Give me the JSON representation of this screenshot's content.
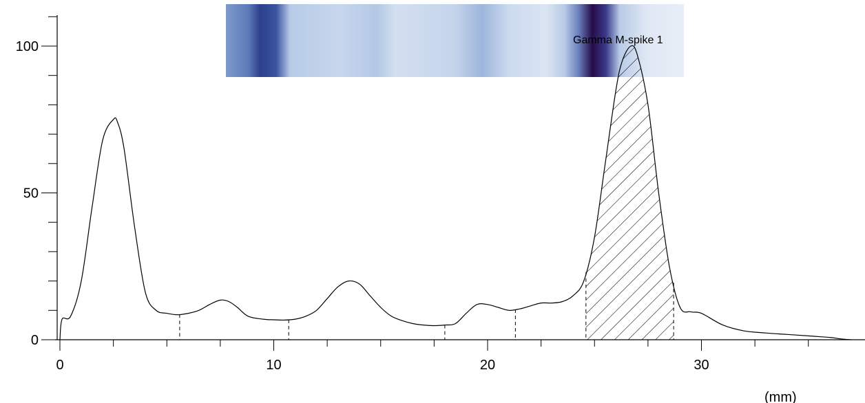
{
  "chart_data": {
    "type": "line",
    "title": "",
    "xlabel": "(mm)",
    "ylabel": "",
    "xlim": [
      0,
      37
    ],
    "ylim": [
      0,
      110
    ],
    "x_ticks": [
      0,
      10,
      20,
      30
    ],
    "x_minor_step": 2.5,
    "y_ticks": [
      0,
      50,
      100
    ],
    "y_minor_step": 10,
    "grid": false,
    "legend": "none",
    "series": [
      {
        "x": [
          0,
          0.1,
          0.5,
          1.0,
          1.5,
          2.0,
          2.5,
          2.7,
          3.0,
          3.5,
          4.0,
          4.5,
          5.0,
          5.5,
          6.0,
          6.5,
          7.0,
          7.5,
          7.9,
          8.3,
          8.8,
          9.5,
          10.0,
          10.5,
          11.0,
          11.5,
          12.0,
          12.5,
          13.0,
          13.5,
          14.0,
          14.5,
          15.0,
          15.5,
          16.0,
          16.5,
          17.0,
          17.5,
          18.0,
          18.5,
          19.0,
          19.5,
          20.0,
          20.5,
          21.0,
          21.5,
          22.0,
          22.5,
          23.0,
          23.5,
          24.0,
          24.5,
          25.0,
          25.5,
          26.0,
          26.3,
          26.7,
          27.0,
          27.5,
          28.0,
          28.5,
          29.0,
          29.5,
          30.0,
          31.0,
          32.0,
          33.0,
          34.0,
          35.0,
          36.0,
          36.5,
          37.0
        ],
        "y": [
          0,
          7,
          8,
          20,
          45,
          68,
          75,
          74,
          65,
          38,
          16,
          10,
          9,
          8.5,
          9,
          10,
          12,
          13.5,
          13,
          11,
          8,
          7,
          6.8,
          6.7,
          7,
          8,
          10,
          14,
          18,
          20,
          19,
          15,
          11,
          8,
          6.5,
          5.5,
          5,
          4.8,
          5,
          5.5,
          9,
          12,
          12,
          11,
          10,
          10.5,
          11.5,
          12.5,
          12.5,
          13,
          15,
          20,
          35,
          60,
          85,
          95,
          100,
          97,
          80,
          50,
          25,
          11,
          9.5,
          9,
          5,
          3,
          2.3,
          1.8,
          1.3,
          0.8,
          0.3,
          0
        ]
      }
    ],
    "fraction_dividers_x": [
      5.6,
      10.7,
      18.0,
      21.3,
      24.6,
      28.7
    ],
    "highlighted_region": {
      "x_start": 24.6,
      "x_end": 28.7,
      "pattern": "diagonal-hatch",
      "label": "Gamma M-spike 1"
    },
    "gel_strip_colors": [
      "#5b79b6",
      "#2c3f8c",
      "#c7d6ec",
      "#9db6dc",
      "#dbe5f2",
      "#270c4a",
      "#e4ecf6"
    ]
  }
}
